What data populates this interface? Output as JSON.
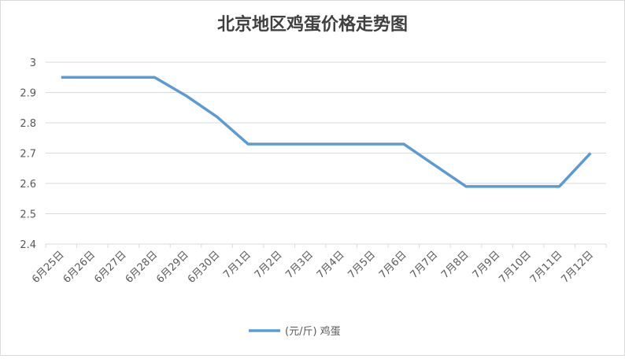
{
  "chart_data": {
    "type": "line",
    "title": "北京地区鸡蛋价格走势图",
    "categories": [
      "6月25日",
      "6月26日",
      "6月27日",
      "6月28日",
      "6月29日",
      "6月30日",
      "7月1日",
      "7月2日",
      "7月3日",
      "7月4日",
      "7月5日",
      "7月6日",
      "7月7日",
      "7月8日",
      "7月9日",
      "7月10日",
      "7月11日",
      "7月12日"
    ],
    "series": [
      {
        "name": "(元/斤) 鸡蛋",
        "color": "#5b9bd5",
        "values": [
          2.95,
          2.95,
          2.95,
          2.95,
          2.89,
          2.82,
          2.73,
          2.73,
          2.73,
          2.73,
          2.73,
          2.73,
          2.66,
          2.59,
          2.59,
          2.59,
          2.59,
          2.7
        ]
      }
    ],
    "ylim": [
      2.4,
      3
    ],
    "yticks": [
      2.4,
      2.5,
      2.6,
      2.7,
      2.8,
      2.9,
      3
    ],
    "grid": true,
    "legend": "bottom"
  }
}
